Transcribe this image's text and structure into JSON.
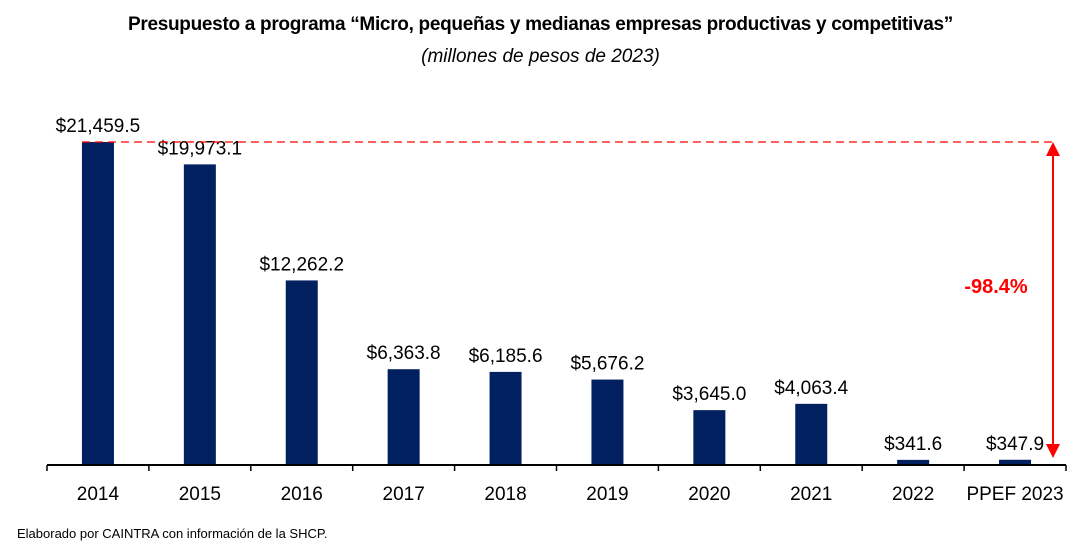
{
  "chart_data": {
    "type": "bar",
    "title": "Presupuesto a programa “Micro, pequeñas y medianas empresas productivas y competitivas”",
    "subtitle": "(millones de pesos de 2023)",
    "xlabel": "",
    "ylabel": "",
    "categories": [
      "2014",
      "2015",
      "2016",
      "2017",
      "2018",
      "2019",
      "2020",
      "2021",
      "2022",
      "PPEF 2023"
    ],
    "values": [
      21459.5,
      19973.1,
      12262.2,
      6363.8,
      6185.6,
      5676.2,
      3645.0,
      4063.4,
      341.6,
      347.9
    ],
    "data_labels": [
      "$21,459.5",
      "$19,973.1",
      "$12,262.2",
      "$6,363.8",
      "$6,185.6",
      "$5,676.2",
      "$3,645.0",
      "$4,063.4",
      "$341.6",
      "$347.9"
    ],
    "ylim": [
      0,
      22000
    ],
    "grid": false,
    "legend": null,
    "bar_color": "#002060",
    "annotation": {
      "text": "-98.4%",
      "color": "#ff0000",
      "reference_value": 21459.5,
      "description": "dashed reference line at 2014 value with double-headed arrow to PPEF 2023 level"
    }
  },
  "footer": {
    "source": "Elaborado por CAINTRA con información de la SHCP."
  }
}
